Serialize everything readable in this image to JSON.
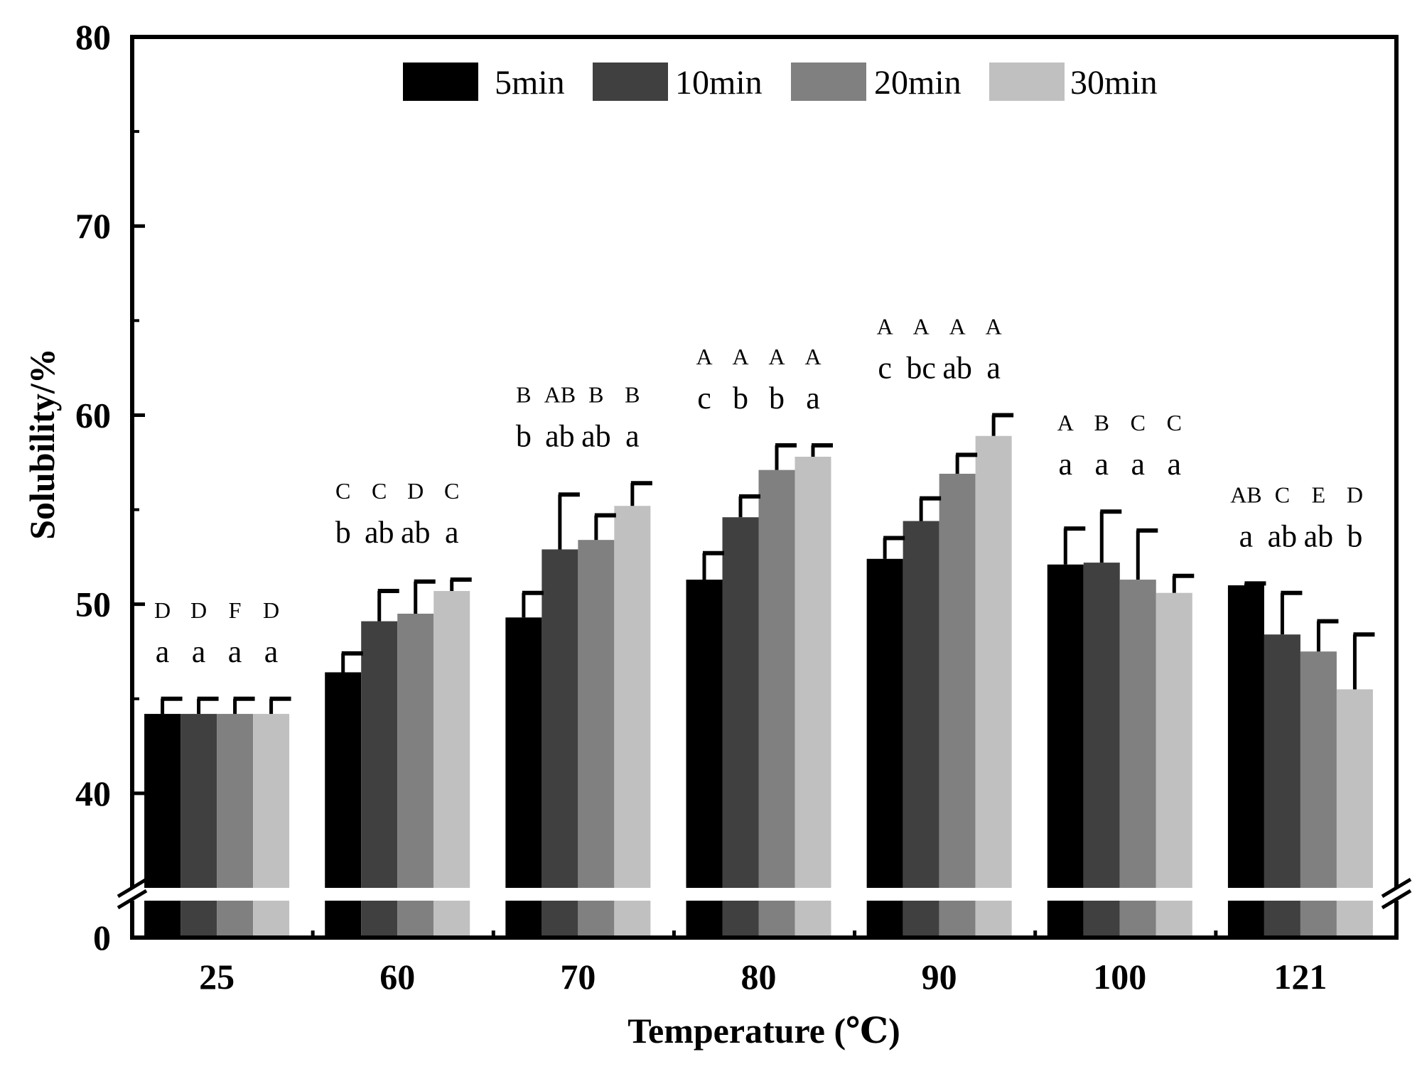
{
  "chart_data": {
    "type": "bar",
    "xlabel": "Temperature (℃)",
    "ylabel": "Solubility/%",
    "y_ticks": [
      "0",
      "40",
      "50",
      "60",
      "70",
      "80"
    ],
    "ylim_lower": [
      0,
      5
    ],
    "ylim_upper": [
      35,
      80
    ],
    "axis_break": true,
    "legend_position": "top-center",
    "categories": [
      "25",
      "60",
      "70",
      "80",
      "90",
      "100",
      "121"
    ],
    "series": [
      {
        "name": "5min",
        "color": "#000000",
        "values": [
          44.2,
          46.4,
          49.3,
          51.3,
          52.4,
          52.1,
          51.0
        ],
        "errors": [
          0.8,
          1.0,
          1.3,
          1.4,
          1.1,
          1.9,
          0.1
        ]
      },
      {
        "name": "10min",
        "color": "#404040",
        "values": [
          44.2,
          49.1,
          52.9,
          54.6,
          54.4,
          52.2,
          48.4
        ],
        "errors": [
          0.8,
          1.6,
          2.9,
          1.1,
          1.2,
          2.7,
          2.2
        ]
      },
      {
        "name": "20min",
        "color": "#808080",
        "values": [
          44.2,
          49.5,
          53.4,
          57.1,
          56.9,
          51.3,
          47.5
        ],
        "errors": [
          0.8,
          1.7,
          1.3,
          1.3,
          1.0,
          2.6,
          1.6
        ]
      },
      {
        "name": "30min",
        "color": "#c0c0c0",
        "values": [
          44.2,
          50.7,
          55.2,
          57.8,
          58.9,
          50.6,
          45.5
        ],
        "errors": [
          0.8,
          0.6,
          1.2,
          0.6,
          1.1,
          0.9,
          2.9
        ]
      }
    ],
    "sig_lower": [
      [
        "a",
        "a",
        "a",
        "a"
      ],
      [
        "b",
        "ab",
        "ab",
        "a"
      ],
      [
        "b",
        "ab",
        "ab",
        "a"
      ],
      [
        "c",
        "b",
        "b",
        "a"
      ],
      [
        "c",
        "bc",
        "ab",
        "a"
      ],
      [
        "a",
        "a",
        "a",
        "a"
      ],
      [
        "a",
        "ab",
        "ab",
        "b"
      ]
    ],
    "sig_upper": [
      [
        "D",
        "D",
        "F",
        "D"
      ],
      [
        "C",
        "C",
        "D",
        "C"
      ],
      [
        "B",
        "AB",
        "B",
        "B"
      ],
      [
        "A",
        "A",
        "A",
        "A"
      ],
      [
        "A",
        "A",
        "A",
        "A"
      ],
      [
        "A",
        "B",
        "C",
        "C"
      ],
      [
        "AB",
        "C",
        "E",
        "D"
      ]
    ]
  }
}
